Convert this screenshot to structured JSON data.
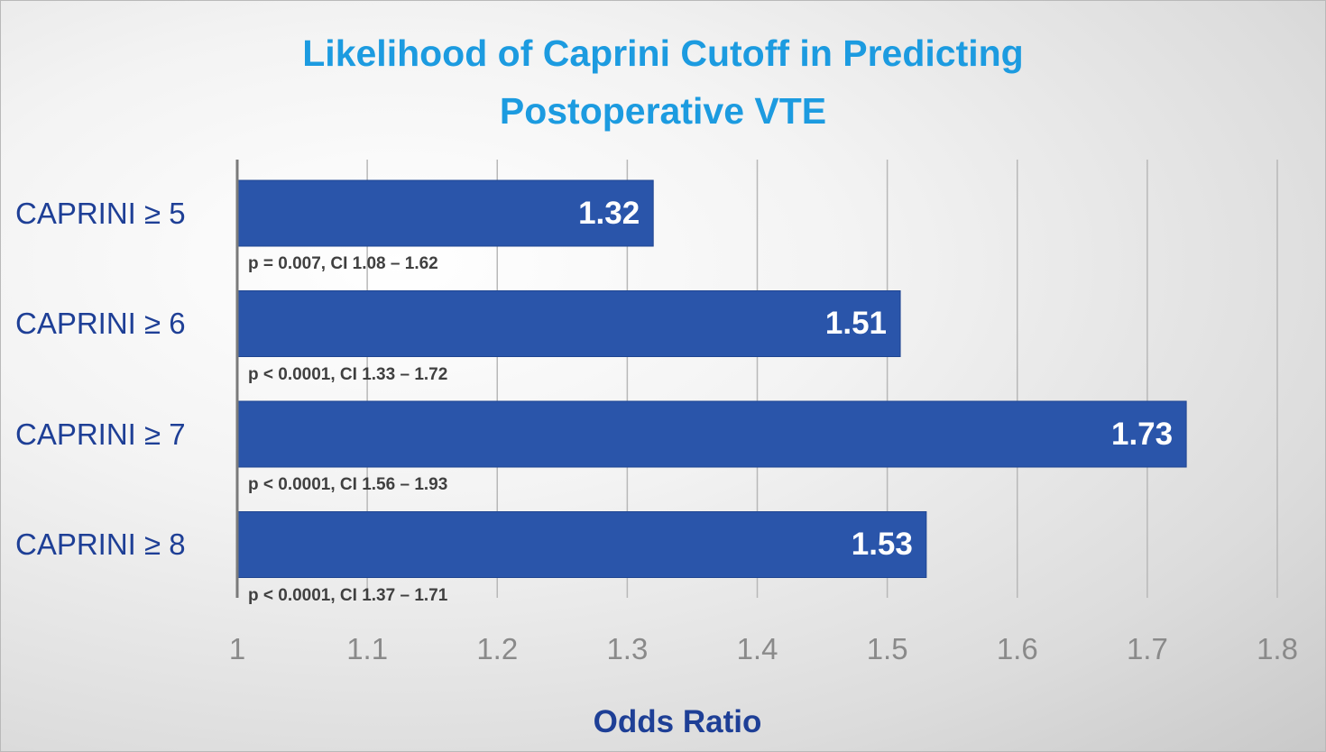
{
  "chart_data": {
    "type": "bar",
    "orientation": "horizontal",
    "title_lines": [
      "Likelihood of Caprini Cutoff in Predicting",
      "Postoperative VTE"
    ],
    "xlabel": "Odds Ratio",
    "ylabel": "",
    "categories": [
      "CAPRINI ≥ 5",
      "CAPRINI ≥ 6",
      "CAPRINI ≥ 7",
      "CAPRINI ≥ 8"
    ],
    "values": [
      1.32,
      1.51,
      1.73,
      1.53
    ],
    "value_labels": [
      "1.32",
      "1.51",
      "1.73",
      "1.53"
    ],
    "annotations": [
      "p = 0.007, CI 1.08 – 1.62",
      "p < 0.0001, CI 1.33 – 1.72",
      "p < 0.0001, CI 1.56 – 1.93",
      "p < 0.0001, CI 1.37 – 1.71"
    ],
    "xlim": [
      1,
      1.8
    ],
    "x_ticks": [
      "1",
      "1.1",
      "1.2",
      "1.3",
      "1.4",
      "1.5",
      "1.6",
      "1.7",
      "1.8"
    ],
    "grid": "vertical",
    "legend": "none",
    "colors": {
      "bar": "#2a55aa",
      "title": "#1c9be0",
      "labels": "#1e3f96"
    }
  }
}
